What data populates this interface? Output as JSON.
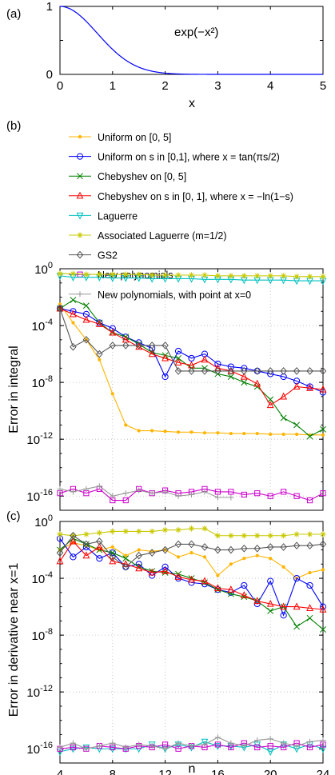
{
  "panels": {
    "a": "(a)",
    "b": "(b)",
    "c": "(c)"
  },
  "chart_data": [
    {
      "id": "a",
      "type": "line",
      "annotation": "exp(−x²)",
      "xlabel": "x",
      "ylabel": "",
      "xlim": [
        0,
        5
      ],
      "ylim": [
        0,
        1
      ],
      "xticks": [
        "0",
        "1",
        "2",
        "3",
        "4",
        "5"
      ],
      "yticks": [
        "0",
        "0.5",
        "1"
      ],
      "function": "exp(-x^2)",
      "series": [
        {
          "color": "#0000ff"
        }
      ]
    },
    {
      "id": "b",
      "type": "line",
      "ylabel": "Error in integral",
      "xlabel": "",
      "xlim": [
        4,
        24
      ],
      "ylim_log10": [
        -17,
        0
      ],
      "yscale": "log",
      "grid": true,
      "xticks": [
        4,
        8,
        12,
        16,
        20,
        24
      ],
      "yticks_exp": [
        0,
        -4,
        -8,
        -12,
        -16
      ],
      "x": [
        4,
        5,
        6,
        7,
        8,
        9,
        10,
        11,
        12,
        13,
        14,
        15,
        16,
        17,
        18,
        19,
        20,
        21,
        22,
        23,
        24
      ],
      "series": [
        {
          "name": "Uniform on [0, 5]",
          "color": "#ffb400",
          "marker": "dot",
          "log10": [
            -2.5,
            -3.8,
            -5.0,
            -6.4,
            -8.8,
            -11.0,
            -11.4,
            -11.4,
            -11.45,
            -11.5,
            -11.5,
            -11.55,
            -11.55,
            -11.6,
            -11.6,
            -11.6,
            -11.65,
            -11.65,
            -11.65,
            -11.7,
            -11.7
          ]
        },
        {
          "name": "Uniform on s in [0,1], where x = tan(πs/2)",
          "color": "#0000ff",
          "marker": "circle",
          "log10": [
            -2.8,
            -3.0,
            -3.2,
            -3.8,
            -4.2,
            -4.8,
            -5.2,
            -5.6,
            -7.6,
            -5.8,
            -6.3,
            -6.0,
            -6.7,
            -6.9,
            -7.0,
            -7.2,
            -7.4,
            -7.6,
            -7.9,
            -8.3,
            -8.7
          ]
        },
        {
          "name": "Chebyshev on [0, 5]",
          "color": "#008000",
          "marker": "cross",
          "log10": [
            -2.8,
            -2.2,
            -2.6,
            -3.8,
            -4.5,
            -4.8,
            -5.3,
            -5.9,
            -6.1,
            -6.3,
            -7.0,
            -7.0,
            -7.4,
            -7.6,
            -8.0,
            -8.3,
            -9.2,
            -10.5,
            -11.0,
            -11.8,
            -11.3
          ]
        },
        {
          "name": "Chebyshev on s in [0, 1], where x = −ln(1−s)",
          "color": "#ff0000",
          "marker": "triangle",
          "log10": [
            -2.8,
            -3.2,
            -3.6,
            -3.9,
            -4.5,
            -5.0,
            -5.5,
            -6.0,
            -6.3,
            -6.6,
            -6.8,
            -6.4,
            -7.0,
            -7.2,
            -7.6,
            -8.1,
            -9.6,
            -9.0,
            -8.3,
            -8.4,
            -8.5
          ]
        },
        {
          "name": "Laguerre",
          "color": "#00c0c0",
          "marker": "tri-down",
          "log10": [
            -0.5,
            -0.6,
            -0.6,
            -0.6,
            -0.65,
            -0.65,
            -0.65,
            -0.7,
            -0.7,
            -0.7,
            -0.7,
            -0.75,
            -0.75,
            -0.75,
            -0.8,
            -0.8,
            -0.8,
            -0.8,
            -0.85,
            -0.85,
            -0.85
          ]
        },
        {
          "name": "Associated Laguerre (m=1/2)",
          "color": "#c8c800",
          "marker": "star",
          "log10": [
            -0.35,
            -0.35,
            -0.4,
            -0.4,
            -0.4,
            -0.4,
            -0.4,
            -0.45,
            -0.45,
            -0.45,
            -0.45,
            -0.45,
            -0.5,
            -0.5,
            -0.5,
            -0.5,
            -0.5,
            -0.5,
            -0.55,
            -0.55,
            -0.55
          ]
        },
        {
          "name": "GS2",
          "color": "#555555",
          "marker": "diamond",
          "log10": [
            -2.8,
            -5.5,
            -5.0,
            -6.0,
            -5.4,
            -5.4,
            -5.4,
            -5.4,
            -5.4,
            -7.2,
            -7.2,
            -7.2,
            -7.2,
            -7.2,
            -7.2,
            -7.2,
            -7.2,
            -7.2,
            -7.2,
            -7.2,
            -7.2
          ]
        },
        {
          "name": "New polynomials",
          "color": "#cc00cc",
          "marker": "square",
          "log10": [
            -15.8,
            -15.5,
            -15.8,
            -15.5,
            -16.3,
            -16.3,
            -15.5,
            -15.8,
            -15.6,
            -15.8,
            -15.7,
            -15.5,
            -15.7,
            -15.7,
            -15.9,
            -15.8,
            -16.0,
            -15.7,
            -16.0,
            -16.3,
            -15.8
          ]
        },
        {
          "name": "New polynomials, with point at x=0",
          "color": "#999999",
          "marker": "plus",
          "log10": [
            -15.5,
            -15.7,
            -15.5,
            -15.3,
            -16.0,
            -15.8,
            -15.6,
            -15.8,
            -15.7,
            -16.0,
            -15.9,
            -15.7,
            -16.1,
            -16.1,
            null,
            null,
            null,
            null,
            null,
            null,
            null
          ]
        }
      ]
    },
    {
      "id": "c",
      "type": "line",
      "ylabel": "Error in derivative near x=1",
      "xlabel": "n",
      "xlim": [
        4,
        24
      ],
      "ylim_log10": [
        -17,
        0
      ],
      "yscale": "log",
      "grid": true,
      "xticks": [
        "4",
        "8",
        "12",
        "16",
        "20",
        "24"
      ],
      "yticks_exp": [
        0,
        -4,
        -8,
        -12,
        -16
      ],
      "x": [
        4,
        5,
        6,
        7,
        8,
        9,
        10,
        11,
        12,
        13,
        14,
        15,
        16,
        17,
        18,
        19,
        20,
        21,
        22,
        23,
        24
      ],
      "series": [
        {
          "name": "Uniform on [0, 5]",
          "color": "#ffb400",
          "marker": "dot",
          "log10": [
            -2.0,
            -1.5,
            -1.7,
            -2.0,
            -1.8,
            -2.4,
            -2.0,
            -2.1,
            -2.0,
            -2.5,
            -2.2,
            -2.5,
            -3.8,
            -3.0,
            -2.6,
            -2.4,
            -2.6,
            -3.2,
            -4.0,
            -3.6,
            -3.4
          ]
        },
        {
          "name": "Uniform on s in [0,1], where x = tan(πs/2)",
          "color": "#0000ff",
          "marker": "circle",
          "log10": [
            -1.2,
            -2.5,
            -1.8,
            -2.6,
            -2.2,
            -3.2,
            -3.0,
            -3.8,
            -3.2,
            -4.0,
            -4.3,
            -4.4,
            -4.8,
            -5.0,
            -4.5,
            -5.8,
            -4.2,
            -6.6,
            -4.0,
            -4.5,
            -6.0
          ]
        },
        {
          "name": "Chebyshev on [0, 5]",
          "color": "#008000",
          "marker": "cross",
          "log10": [
            -2.0,
            -1.2,
            -1.6,
            -2.0,
            -2.2,
            -2.6,
            -3.2,
            -3.5,
            -3.6,
            -3.7,
            -4.0,
            -4.3,
            -4.8,
            -5.1,
            -5.3,
            -5.6,
            -6.3,
            -6.0,
            -7.4,
            -6.8,
            -7.6
          ]
        },
        {
          "name": "Chebyshev on s in [0, 1], where x = −ln(1−s)",
          "color": "#ff0000",
          "marker": "triangle",
          "log10": [
            -2.8,
            -1.4,
            -2.4,
            -1.8,
            -2.8,
            -3.0,
            -3.3,
            -3.6,
            -3.5,
            -3.9,
            -4.1,
            -4.2,
            -4.7,
            -4.8,
            -5.2,
            -5.6,
            -5.8,
            -6.0,
            -6.0,
            -6.1,
            -6.2
          ]
        },
        {
          "name": "Laguerre",
          "color": "#00c0c0",
          "marker": "tri-down",
          "log10": [
            -16.2,
            -16.0,
            -15.9,
            -16.0,
            -16.0,
            -16.0,
            -16.0,
            -15.7,
            -16.0,
            -15.7,
            -15.9,
            -15.5,
            -15.8,
            -15.8,
            -15.9,
            -15.7,
            -16.2,
            -15.7,
            -16.0,
            -15.7,
            -16.0
          ]
        },
        {
          "name": "Associated Laguerre (m=1/2)",
          "color": "#c8c800",
          "marker": "star",
          "log10": [
            -0.9,
            -1.0,
            -0.9,
            -0.8,
            -0.7,
            -0.7,
            -0.7,
            -0.7,
            -0.6,
            -0.6,
            -0.5,
            -0.5,
            -1.0,
            -1.0,
            -1.0,
            -1.0,
            -1.0,
            -1.0,
            -0.9,
            -0.9,
            -0.9
          ]
        },
        {
          "name": "GS2",
          "color": "#555555",
          "marker": "diamond",
          "log10": [
            -2.2,
            -1.0,
            -1.6,
            -1.4,
            -2.5,
            -3.2,
            -2.4,
            -2.2,
            -2.0,
            -1.6,
            -1.6,
            -1.8,
            -2.0,
            -2.0,
            -1.9,
            -1.9,
            -1.8,
            -1.8,
            -1.7,
            -1.7,
            -1.6
          ]
        },
        {
          "name": "New polynomials",
          "color": "#cc00cc",
          "marker": "square",
          "log10": [
            -16.0,
            -15.9,
            -16.0,
            -15.8,
            -15.9,
            -16.0,
            -15.8,
            -15.9,
            -15.7,
            -16.0,
            -15.8,
            -15.9,
            -15.7,
            -15.9,
            -15.6,
            -15.9,
            -15.8,
            -15.9,
            -15.6,
            -15.9,
            -15.7
          ]
        },
        {
          "name": "New polynomials, with point at x=0",
          "color": "#999999",
          "marker": "plus",
          "log10": [
            -15.9,
            -15.6,
            -16.0,
            -15.8,
            -15.6,
            -15.9,
            -15.7,
            -15.8,
            -16.0,
            -15.6,
            -15.8,
            -15.7,
            -15.2,
            -15.6,
            -15.8,
            -15.4,
            -15.3,
            -15.6,
            -15.8,
            -15.5,
            -15.4
          ]
        }
      ]
    }
  ]
}
